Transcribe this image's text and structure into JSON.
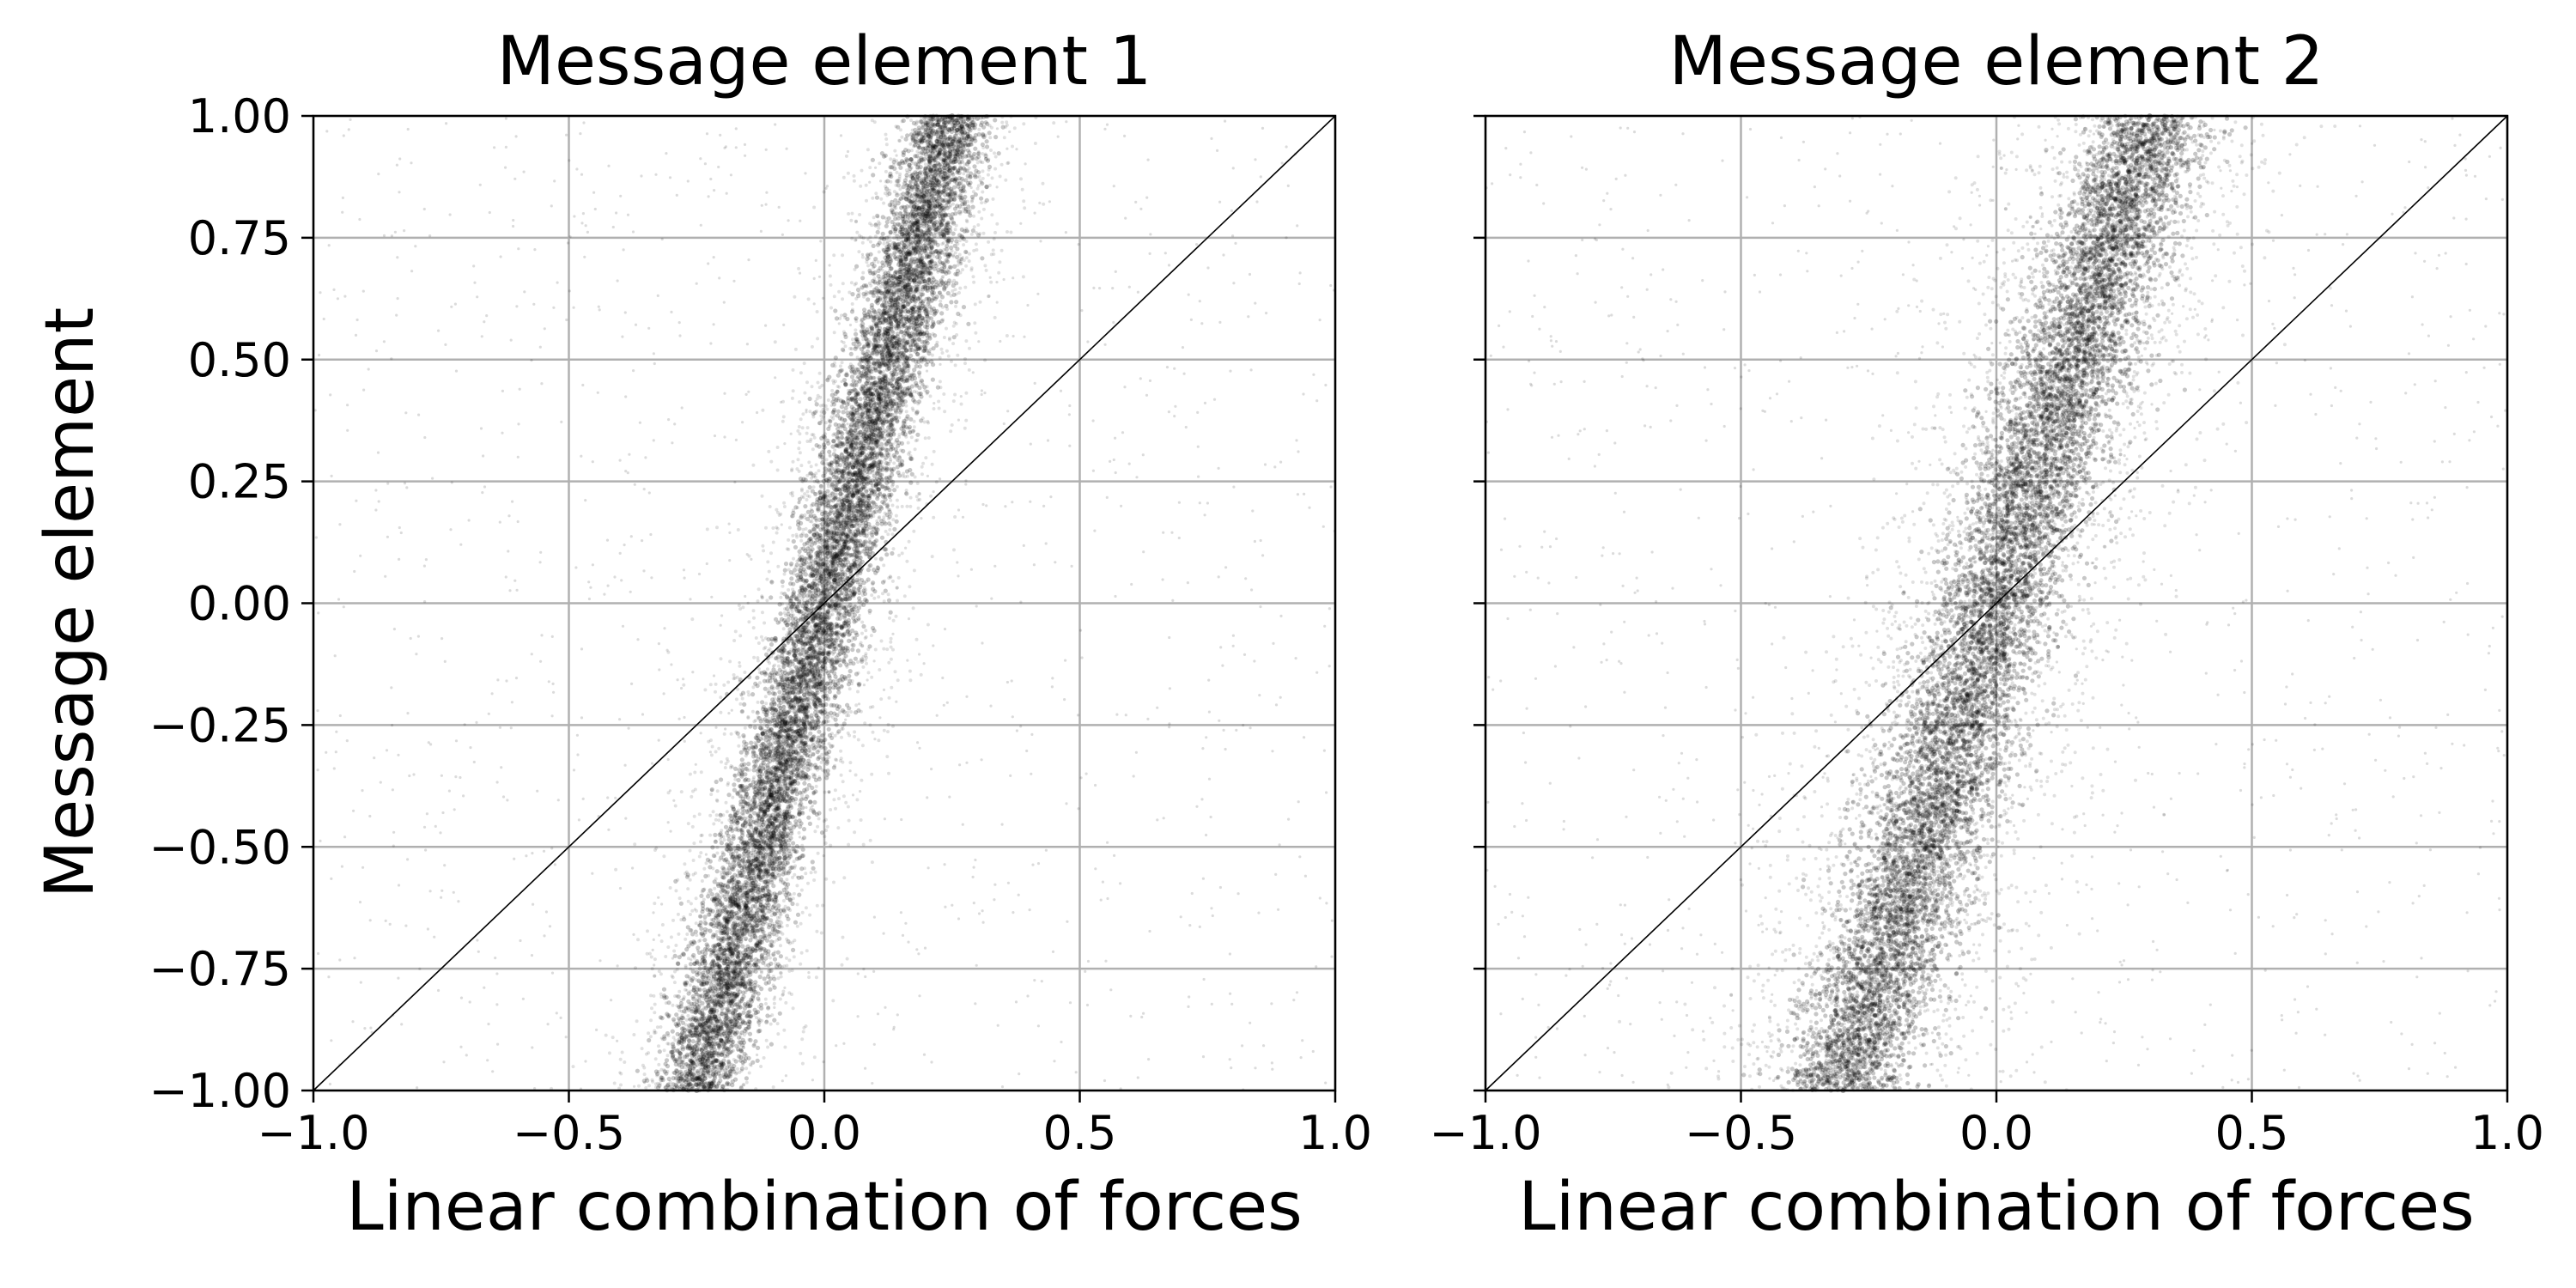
{
  "chart_data": [
    {
      "type": "scatter",
      "title": "Message element 1",
      "xlabel": "Linear combination of forces",
      "ylabel": "Message element",
      "xlim": [
        -1.0,
        1.0
      ],
      "ylim": [
        -1.0,
        1.0
      ],
      "x_ticks": [
        "−1.0",
        "−0.5",
        "0.0",
        "0.5",
        "1.0"
      ],
      "y_ticks": [
        "1.00",
        "0.75",
        "0.50",
        "0.25",
        "0.00",
        "−0.25",
        "−0.50",
        "−0.75",
        "−1.00"
      ],
      "grid": true,
      "reference_line": {
        "x": [
          -1.0,
          1.0
        ],
        "y": [
          -1.0,
          1.0
        ],
        "color": "#000000"
      },
      "point_color": "#000000",
      "density_band": {
        "slope": 4.0,
        "intercept": 0.0,
        "core_spread": 0.04,
        "mid_spread": 0.08
      },
      "outliers_note": "sparse uniform scatter across the plot",
      "series": [
        {
          "x": [
            -0.25,
            -0.2,
            -0.15,
            -0.1,
            -0.05,
            0.0,
            0.05,
            0.1,
            0.15,
            0.2,
            0.25
          ],
          "y": [
            -1.0,
            -0.8,
            -0.6,
            -0.4,
            -0.2,
            0.0,
            0.2,
            0.4,
            0.6,
            0.8,
            1.0
          ]
        }
      ]
    },
    {
      "type": "scatter",
      "title": "Message element 2",
      "xlabel": "Linear combination of forces",
      "ylabel": "",
      "xlim": [
        -1.0,
        1.0
      ],
      "ylim": [
        -1.0,
        1.0
      ],
      "x_ticks": [
        "−1.0",
        "−0.5",
        "0.0",
        "0.5",
        "1.0"
      ],
      "y_ticks": [],
      "grid": true,
      "reference_line": {
        "x": [
          -1.0,
          1.0
        ],
        "y": [
          -1.0,
          1.0
        ],
        "color": "#000000"
      },
      "point_color": "#000000",
      "density_band": {
        "slope": 3.33,
        "intercept": 0.0,
        "core_spread": 0.06,
        "mid_spread": 0.13
      },
      "outliers_note": "sparse uniform scatter across the plot",
      "series": [
        {
          "x": [
            -0.3,
            -0.24,
            -0.18,
            -0.12,
            -0.06,
            0.0,
            0.06,
            0.12,
            0.18,
            0.24,
            0.3
          ],
          "y": [
            -1.0,
            -0.8,
            -0.6,
            -0.4,
            -0.2,
            0.0,
            0.2,
            0.4,
            0.6,
            0.8,
            1.0
          ]
        }
      ]
    }
  ]
}
